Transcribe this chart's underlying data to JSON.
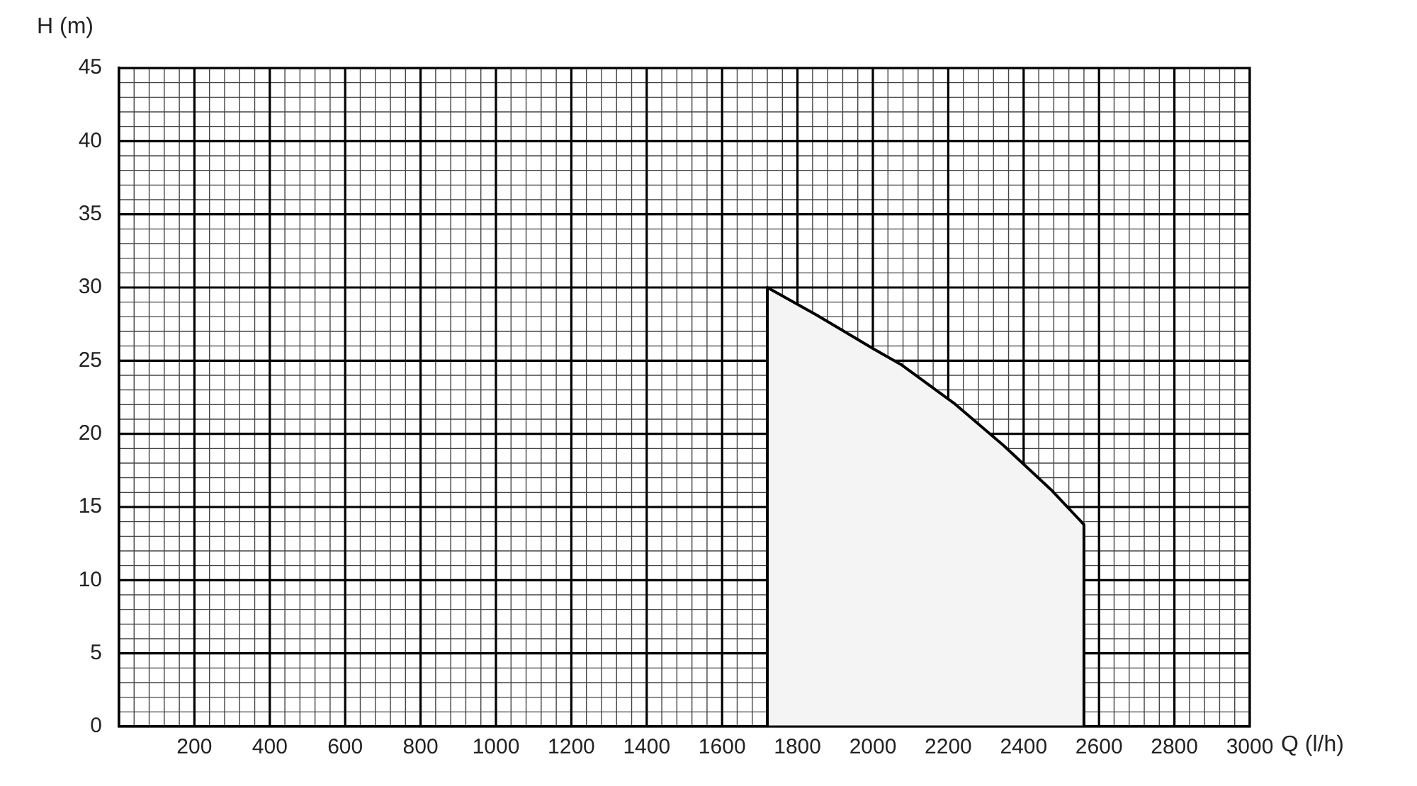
{
  "chart_data": {
    "type": "area",
    "xlabel": "Q (l/h)",
    "ylabel": "H (m)",
    "x": [
      1720,
      1720,
      1852,
      2002,
      2077,
      2215,
      2347,
      2472,
      2560,
      2560
    ],
    "series": [
      {
        "color": "#000000",
        "values": [
          0,
          30,
          28.1,
          25.8,
          24.7,
          22.1,
          19.2,
          16.2,
          13.8,
          0
        ]
      }
    ],
    "xlim": [
      0,
      3000
    ],
    "xticks": [
      200,
      400,
      600,
      800,
      1000,
      1200,
      1400,
      1600,
      1800,
      2000,
      2200,
      2400,
      2600,
      2800,
      3000
    ],
    "ylim": [
      0,
      45
    ],
    "yticks": [
      0,
      5,
      10,
      15,
      20,
      25,
      30,
      35,
      40,
      45
    ],
    "grid": true,
    "legend": false
  }
}
